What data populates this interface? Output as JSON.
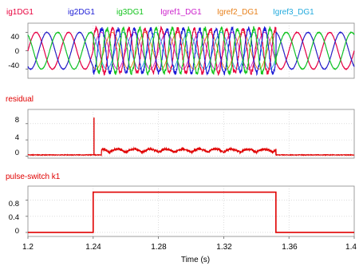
{
  "chart_data": [
    {
      "type": "line",
      "legend": [
        {
          "name": "ig1DG1",
          "color": "#e8003d"
        },
        {
          "name": "ig2DG1",
          "color": "#1a1ad6"
        },
        {
          "name": "ig3DG1",
          "color": "#12c41c"
        },
        {
          "name": "Igref1_DG1",
          "color": "#cc22cc"
        },
        {
          "name": "Igref2_DG1",
          "color": "#e8801a"
        },
        {
          "name": "Igref3_DG1",
          "color": "#22aadd"
        }
      ],
      "legend_placement": "top",
      "xlim": [
        1.2,
        1.4
      ],
      "ylim": [
        -60,
        60
      ],
      "yticks": [
        "40",
        "0",
        "-40"
      ],
      "grid": true,
      "series_description": {
        "reference_amplitude": 40,
        "frequency_hz": 50,
        "disturbed_window": [
          1.24,
          1.352
        ],
        "disturbed_amplitude": 48
      }
    },
    {
      "type": "line",
      "title": "residual",
      "color": "#e00000",
      "xlim": [
        1.2,
        1.4
      ],
      "ylim": [
        -0.5,
        11.5
      ],
      "yticks": [
        "8",
        "4",
        "0"
      ],
      "grid": true,
      "series_description": {
        "baseline": 0.3,
        "spike_time": 1.2405,
        "spike_value": 9.5,
        "oscillation_window": [
          1.245,
          1.352
        ],
        "oscillation_peak": 1.3,
        "end_spike_time": 1.352,
        "end_spike_value": 1.8
      }
    },
    {
      "type": "line",
      "title": "pulse-switch k1",
      "color": "#e00000",
      "xlim": [
        1.2,
        1.4
      ],
      "ylim": [
        -0.1,
        1.15
      ],
      "yticks": [
        "0.8",
        "0.4",
        "0"
      ],
      "grid": true,
      "x": [
        1.2,
        1.24,
        1.24,
        1.352,
        1.352,
        1.4
      ],
      "y": [
        0,
        0,
        1,
        1,
        0,
        0
      ]
    }
  ],
  "xaxis": {
    "ticks": [
      "1.2",
      "1.24",
      "1.28",
      "1.32",
      "1.36",
      "1.4"
    ],
    "label": "Time (s)"
  }
}
